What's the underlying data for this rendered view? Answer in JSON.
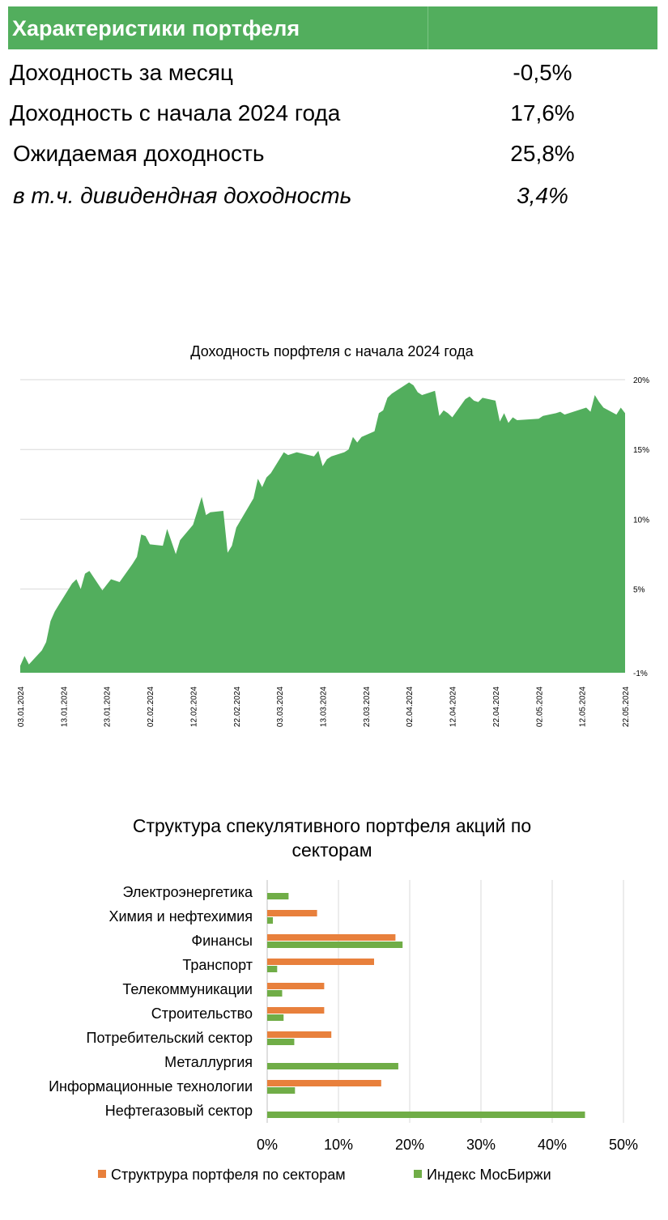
{
  "header": {
    "title": "Характеристики портфеля"
  },
  "stats": [
    {
      "label": "Доходность за месяц",
      "value": "-0,5%"
    },
    {
      "label": "Доходность с начала 2024 года",
      "value": "17,6%"
    },
    {
      "label": "Ожидаемая доходность",
      "value": "25,8%"
    },
    {
      "label": "в т.ч. дивидендная доходность",
      "value": "3,4%"
    }
  ],
  "colors": {
    "green": "#52ae5d",
    "orange": "#e8803c",
    "bar_green": "#70ad47",
    "grid": "#d9d9d9"
  },
  "chart_data": [
    {
      "type": "area",
      "title": "Доходность порфтеля с начала 2024 года",
      "ylim": [
        -1,
        20
      ],
      "y_ticks": [
        "20%",
        "15%",
        "10%",
        "5%",
        "-1%"
      ],
      "y_tick_values": [
        20,
        15,
        10,
        5,
        -1
      ],
      "x_ticks": [
        "03.01.2024",
        "13.01.2024",
        "23.01.2024",
        "02.02.2024",
        "12.02.2024",
        "22.02.2024",
        "03.03.2024",
        "13.03.2024",
        "23.03.2024",
        "02.04.2024",
        "12.04.2024",
        "22.04.2024",
        "02.05.2024",
        "12.05.2024",
        "22.05.2024"
      ],
      "grid": true,
      "series": [
        {
          "x": [
            "2024-01-03",
            "2024-01-04",
            "2024-01-05",
            "2024-01-08",
            "2024-01-09",
            "2024-01-10",
            "2024-01-11",
            "2024-01-12",
            "2024-01-15",
            "2024-01-16",
            "2024-01-17",
            "2024-01-18",
            "2024-01-19",
            "2024-01-22",
            "2024-01-23",
            "2024-01-24",
            "2024-01-25",
            "2024-01-26",
            "2024-01-29",
            "2024-01-30",
            "2024-01-31",
            "2024-02-01",
            "2024-02-02",
            "2024-02-05",
            "2024-02-06",
            "2024-02-07",
            "2024-02-08",
            "2024-02-09",
            "2024-02-12",
            "2024-02-13",
            "2024-02-14",
            "2024-02-15",
            "2024-02-16",
            "2024-02-19",
            "2024-02-20",
            "2024-02-21",
            "2024-02-22",
            "2024-02-26",
            "2024-02-27",
            "2024-02-28",
            "2024-02-29",
            "2024-03-01",
            "2024-03-04",
            "2024-03-05",
            "2024-03-06",
            "2024-03-07",
            "2024-03-11",
            "2024-03-12",
            "2024-03-13",
            "2024-03-14",
            "2024-03-15",
            "2024-03-18",
            "2024-03-19",
            "2024-03-20",
            "2024-03-21",
            "2024-03-22",
            "2024-03-25",
            "2024-03-26",
            "2024-03-27",
            "2024-03-28",
            "2024-03-29",
            "2024-04-01",
            "2024-04-02",
            "2024-04-03",
            "2024-04-04",
            "2024-04-05",
            "2024-04-08",
            "2024-04-09",
            "2024-04-10",
            "2024-04-11",
            "2024-04-12",
            "2024-04-15",
            "2024-04-16",
            "2024-04-17",
            "2024-04-18",
            "2024-04-19",
            "2024-04-22",
            "2024-04-23",
            "2024-04-24",
            "2024-04-25",
            "2024-04-26",
            "2024-04-27",
            "2024-05-02",
            "2024-05-03",
            "2024-05-06",
            "2024-05-07",
            "2024-05-08",
            "2024-05-13",
            "2024-05-14",
            "2024-05-15",
            "2024-05-16",
            "2024-05-17",
            "2024-05-20",
            "2024-05-21",
            "2024-05-22"
          ],
          "values": [
            -0.5,
            0.2,
            -0.4,
            0.6,
            1.2,
            2.7,
            3.4,
            3.9,
            5.4,
            5.7,
            5.0,
            6.1,
            6.3,
            4.9,
            5.3,
            5.7,
            5.6,
            5.5,
            6.8,
            7.3,
            8.9,
            8.8,
            8.2,
            8.1,
            9.3,
            8.4,
            7.5,
            8.5,
            9.6,
            10.6,
            11.6,
            10.3,
            10.5,
            10.6,
            7.6,
            8.1,
            9.4,
            11.5,
            12.9,
            12.3,
            13.0,
            13.3,
            14.8,
            14.6,
            14.7,
            14.8,
            14.5,
            14.9,
            13.8,
            14.3,
            14.5,
            14.8,
            15.0,
            15.9,
            15.5,
            15.9,
            16.3,
            17.6,
            17.8,
            18.7,
            19.0,
            19.6,
            19.8,
            19.6,
            19.1,
            18.9,
            19.2,
            17.4,
            17.8,
            17.6,
            17.3,
            18.6,
            18.8,
            18.5,
            18.4,
            18.7,
            18.5,
            17.0,
            17.6,
            16.9,
            17.3,
            17.1,
            17.2,
            17.4,
            17.6,
            17.7,
            17.5,
            18.0,
            17.7,
            18.9,
            18.4,
            18.0,
            17.5,
            18.0,
            17.6
          ]
        }
      ]
    },
    {
      "type": "bar",
      "orientation": "horizontal",
      "title": "Структура спекулятивного портфеля акций по секторам",
      "categories": [
        "Электроэнергетика",
        "Химия и нефтехимия",
        "Финансы",
        "Транспорт",
        "Телекоммуникации",
        "Строительство",
        "Потребительский сектор",
        "Металлургия",
        "Информационные технологии",
        "Нефтегазовый сектор"
      ],
      "xlim": [
        0,
        50
      ],
      "x_ticks": [
        "0%",
        "10%",
        "20%",
        "30%",
        "40%",
        "50%"
      ],
      "x_tick_values": [
        0,
        10,
        20,
        30,
        40,
        50
      ],
      "grid": true,
      "legend": "bottom",
      "series": [
        {
          "name": "Структруpа портфеля по секторам",
          "values": [
            0,
            7,
            18,
            15,
            8,
            8,
            9,
            0,
            16,
            0
          ]
        },
        {
          "name": "Индекс МосБиржи",
          "values": [
            3.0,
            0.8,
            19.0,
            1.4,
            2.1,
            2.3,
            3.8,
            18.4,
            3.9,
            44.6
          ]
        }
      ]
    }
  ]
}
